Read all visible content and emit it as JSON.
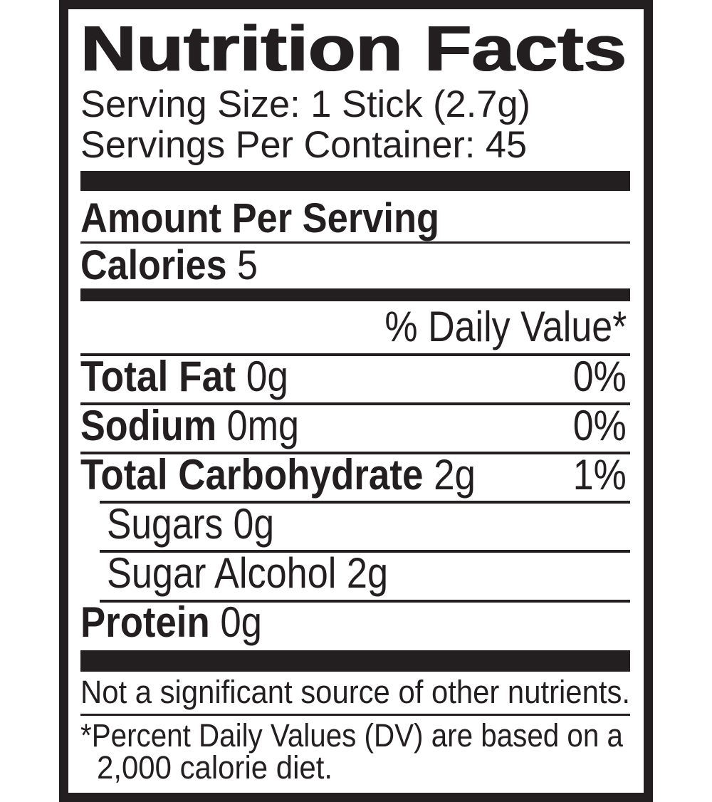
{
  "label": {
    "title": "Nutrition Facts",
    "serving_size": "Serving Size: 1 Stick (2.7g)",
    "servings_per_container": "Servings Per Container: 45",
    "amount_per_serving": "Amount Per Serving",
    "calories": {
      "label": "Calories",
      "value": "5"
    },
    "daily_value_header": "% Daily Value*",
    "nutrients": [
      {
        "label": "Total Fat",
        "amount": "0g",
        "dv": "0%"
      },
      {
        "label": "Sodium",
        "amount": "0mg",
        "dv": "0%"
      },
      {
        "label": "Total Carbohydrate",
        "amount": "2g",
        "dv": "1%"
      },
      {
        "label": "Sugars 0g"
      },
      {
        "label": "Sugar Alcohol 2g"
      },
      {
        "label": "Protein",
        "amount": "0g"
      }
    ],
    "not_significant": "Not a significant source of other nutrients.",
    "footnote_line1": "*Percent Daily Values (DV) are based on a",
    "footnote_line2": "2,000 calorie diet."
  },
  "colors": {
    "ink": "#231f20",
    "background": "#ffffff"
  }
}
